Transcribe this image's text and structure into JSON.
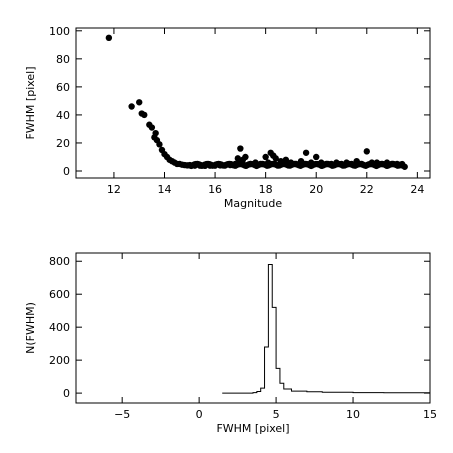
{
  "chart_data": [
    {
      "type": "scatter",
      "xlabel": "Magnitude",
      "ylabel": "FWHM [pixel]",
      "xlim": [
        10.5,
        24.5
      ],
      "ylim": [
        -5,
        102
      ],
      "xticks": [
        12,
        14,
        16,
        18,
        20,
        22,
        24
      ],
      "yticks": [
        0,
        20,
        40,
        60,
        80,
        100
      ],
      "grid": false,
      "series": [
        {
          "x": [
            11.8,
            12.7,
            13.0,
            13.1,
            13.2,
            13.4,
            13.5,
            13.6,
            13.65,
            13.7,
            13.8,
            13.9,
            14.0,
            14.1,
            14.2,
            14.3,
            14.4,
            14.5,
            14.6,
            14.7,
            14.8,
            14.9,
            15.0,
            15.2,
            15.4,
            15.6,
            15.8,
            16.0,
            16.2,
            16.4,
            16.6,
            16.8,
            16.9,
            17.0,
            17.1,
            17.2,
            17.4,
            17.6,
            17.8,
            18.0,
            18.1,
            18.2,
            18.3,
            18.4,
            18.6,
            18.8,
            19.0,
            19.2,
            19.4,
            19.6,
            19.8,
            20.0,
            20.2,
            20.4,
            20.6,
            20.8,
            21.0,
            21.2,
            21.4,
            21.6,
            21.8,
            22.0,
            22.2,
            22.4,
            22.6,
            22.8,
            23.0,
            23.2,
            23.4,
            23.5
          ],
          "y": [
            95,
            46,
            49,
            41,
            40,
            33,
            31,
            24,
            27,
            22,
            19,
            15,
            12,
            10,
            8,
            7,
            6,
            5,
            5,
            4.5,
            4.2,
            4,
            4,
            3.8,
            3.8,
            3.7,
            3.8,
            3.8,
            4,
            4,
            4.2,
            5,
            9,
            16,
            8,
            10,
            5,
            6,
            5,
            10,
            6,
            13,
            11,
            9,
            7,
            8,
            6,
            5,
            7,
            13,
            6,
            10,
            6,
            5,
            5,
            6,
            5,
            6,
            5,
            7,
            5,
            14,
            6,
            6,
            5,
            6,
            5,
            5,
            4,
            3
          ]
        }
      ]
    },
    {
      "type": "line",
      "xlabel": "FWHM [pixel]",
      "ylabel": "N(FWHM)",
      "xlim": [
        -8,
        15
      ],
      "ylim": [
        -60,
        850
      ],
      "xticks": [
        -5,
        0,
        5,
        10,
        15
      ],
      "yticks": [
        0,
        200,
        400,
        600,
        800
      ],
      "grid": false,
      "series": [
        {
          "step": true,
          "x": [
            1.5,
            3.5,
            3.75,
            4.0,
            4.25,
            4.5,
            4.75,
            5.0,
            5.25,
            5.5,
            6.0,
            7.0,
            8.0,
            10.0,
            12.0,
            15.0
          ],
          "y": [
            0,
            3,
            10,
            30,
            280,
            780,
            520,
            150,
            60,
            25,
            12,
            8,
            5,
            3,
            2,
            0
          ]
        }
      ]
    }
  ]
}
